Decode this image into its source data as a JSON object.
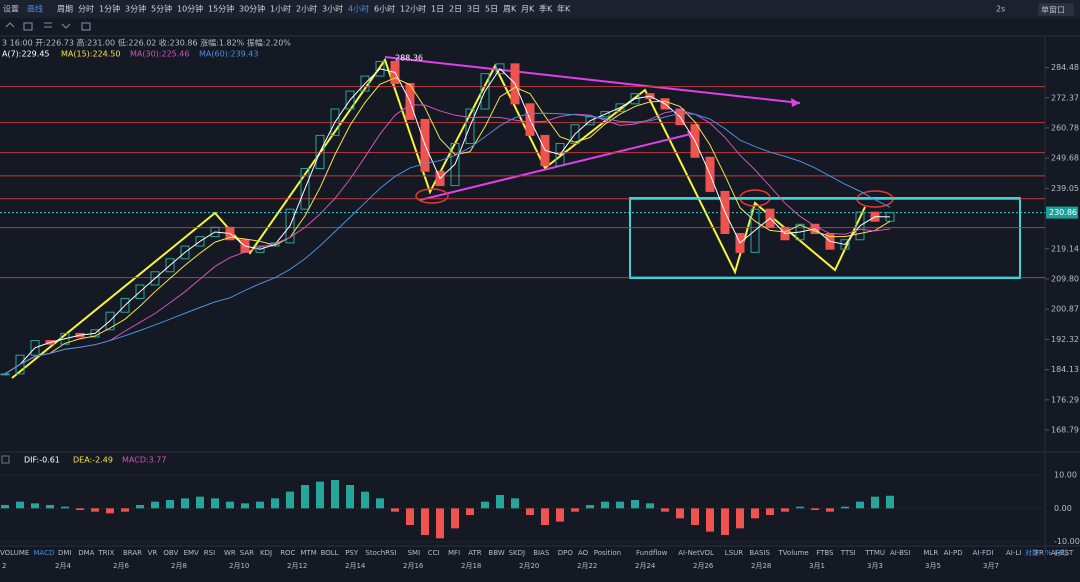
{
  "toolbar": {
    "left": [
      "设置",
      "画线"
    ],
    "periods": [
      "周期",
      "分时",
      "1分钟",
      "3分钟",
      "5分钟",
      "10分钟",
      "15分钟",
      "30分钟",
      "1小时",
      "2小时",
      "3小时",
      "4小时",
      "6小时",
      "12小时",
      "1日",
      "2日",
      "3日",
      "5日",
      "周K",
      "月K",
      "季K",
      "年K"
    ],
    "active": "4小时",
    "refresh": "2s",
    "window": "单窗口"
  },
  "info": {
    "ohlc": "3 16:00 开:226.73 高:231.00 低:226.02 收:230.86 涨幅:1.82% 振幅:2.20%",
    "ma": [
      {
        "text": "A(7):229.45",
        "color": "#ffffff"
      },
      {
        "text": "MA(15):224.50",
        "color": "#f5e24a"
      },
      {
        "text": "MA(30):225.46",
        "color": "#d453b8"
      },
      {
        "text": "MA(60):239.43",
        "color": "#4b8fe0"
      }
    ]
  },
  "price_chart": {
    "log": true,
    "ylim": [
      164,
      296
    ],
    "yticks": [
      284.48,
      272.37,
      260.78,
      249.68,
      239.05,
      219.14,
      {
        "value": 209.8,
        "label": "209.80"
      },
      200.87,
      192.32,
      184.13,
      176.29,
      168.79
    ],
    "last": 230.86,
    "peak_label": "288.36",
    "closes": [
      183,
      188,
      192,
      191,
      194,
      193,
      195,
      200,
      204,
      208,
      212,
      216,
      220,
      223,
      226,
      222,
      218,
      220,
      221,
      232,
      246,
      258,
      268,
      275,
      281,
      287,
      278,
      264,
      245,
      240,
      255,
      268,
      282,
      286,
      270,
      258,
      247,
      255,
      262,
      265,
      267,
      270,
      274,
      272,
      268,
      262,
      250,
      238,
      224,
      218,
      232,
      226,
      222,
      227,
      224,
      219,
      222,
      231,
      228,
      230.86
    ],
    "levels": [
      276.8,
      262.8,
      251.7,
      243.4,
      235.5,
      225.9,
      210.2
    ],
    "box": [
      235.5,
      210.2
    ]
  },
  "macd": {
    "header": [
      {
        "text": "DIF:-0.61",
        "color": "#ffffff"
      },
      {
        "text": "DEA:-2.49",
        "color": "#f5e24a"
      },
      {
        "text": "MACD:3.77",
        "color": "#d453b8"
      }
    ],
    "ylim": [
      -11,
      16
    ],
    "yticks": [
      {
        "value": 10,
        "label": "10.00"
      },
      {
        "value": 0,
        "label": "0.00"
      },
      {
        "value": -10,
        "label": "-10.00"
      }
    ],
    "hist": [
      1,
      2,
      1.5,
      1,
      0.5,
      -0.5,
      -1,
      -1.5,
      -1,
      1,
      2,
      2.5,
      3,
      3.5,
      3,
      2,
      1.5,
      2,
      3,
      5,
      7,
      8,
      8.5,
      7,
      5,
      3,
      -1,
      -5,
      -8,
      -9,
      -6,
      -2,
      2,
      4,
      3,
      -2,
      -5,
      -4,
      -1,
      1,
      2,
      2,
      2.5,
      1.5,
      -1,
      -3,
      -5,
      -7,
      -8,
      -6,
      -3,
      -2,
      -1,
      0.5,
      -0.5,
      -1,
      0.5,
      2,
      3.5,
      3.77
    ]
  },
  "dates": [
    "2",
    "2月4",
    "2月6",
    "2月8",
    "2月10",
    "2月12",
    "2月14",
    "2月16",
    "2月18",
    "2月20",
    "2月22",
    "2月24",
    "2月26",
    "2月28",
    "3月1",
    "3月3",
    "3月5",
    "3月7"
  ],
  "tabs": [
    "VOLUME",
    "MACD",
    "DMI",
    "DMA",
    "TRIX",
    "BRAR",
    "VR",
    "OBV",
    "EMV",
    "RSI",
    "WR",
    "SAR",
    "KDJ",
    "ROC",
    "MTM",
    "BOLL",
    "PSY",
    "StochRSI",
    "SMI",
    "CCI",
    "MFI",
    "ATR",
    "BBW",
    "SKDJ",
    "BIAS",
    "DPO",
    "AO",
    "Position",
    "Fundflow",
    "AI-NetVOL",
    "LSUR",
    "BASIS",
    "TVolume",
    "FTBS",
    "TTSI",
    "TTMU",
    "AI-BSI",
    "MLR",
    "AI-PD",
    "AI-FDI",
    "AI-LI",
    "FR",
    "AI-BST"
  ],
  "tab_active": "MACD",
  "axis_opts": [
    "对数",
    "%",
    "自动"
  ]
}
